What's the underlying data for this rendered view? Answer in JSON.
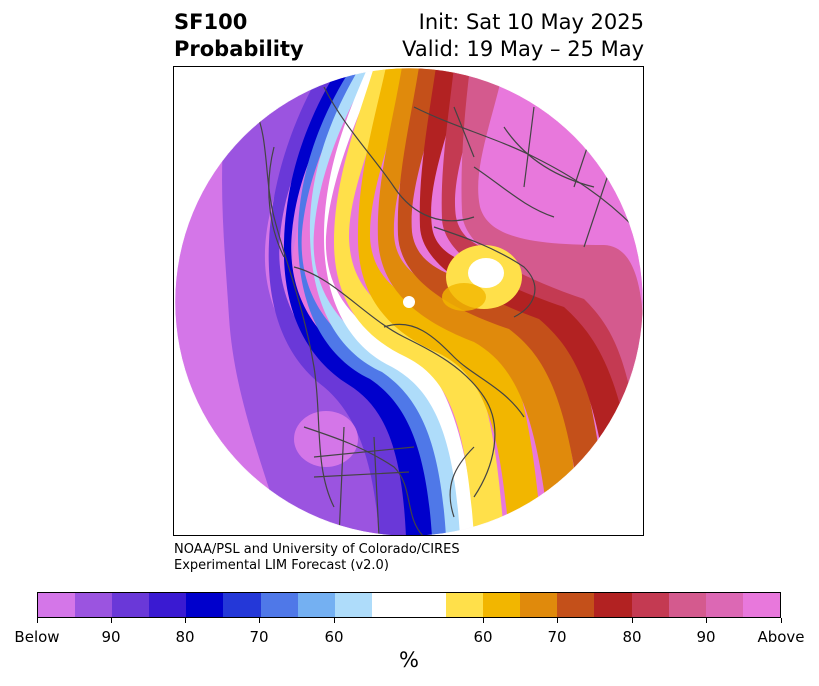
{
  "header": {
    "title_line1": "SF100",
    "title_line2": "Probability",
    "init": "Init: Sat 10 May 2025",
    "valid": "Valid: 19 May – 25 May"
  },
  "credit": {
    "line1": "NOAA/PSL and University of Colorado/CIRES",
    "line2": "Experimental LIM Forecast (v2.0)"
  },
  "colorbar": {
    "unit": "%",
    "colors": [
      "#d476e8",
      "#9b54e0",
      "#6a38d8",
      "#3a1ad2",
      "#0000cc",
      "#2438d8",
      "#4f78e8",
      "#74b0f2",
      "#aedcfa",
      "#ffffff",
      "#ffe04a",
      "#f2b600",
      "#e08a0c",
      "#c4501a",
      "#b22222",
      "#c43a52",
      "#d45a8e",
      "#dc68b4",
      "#e878dc"
    ],
    "ticks": [
      "Below",
      "90",
      "80",
      "70",
      "60",
      "60",
      "70",
      "80",
      "90",
      "Above"
    ]
  }
}
